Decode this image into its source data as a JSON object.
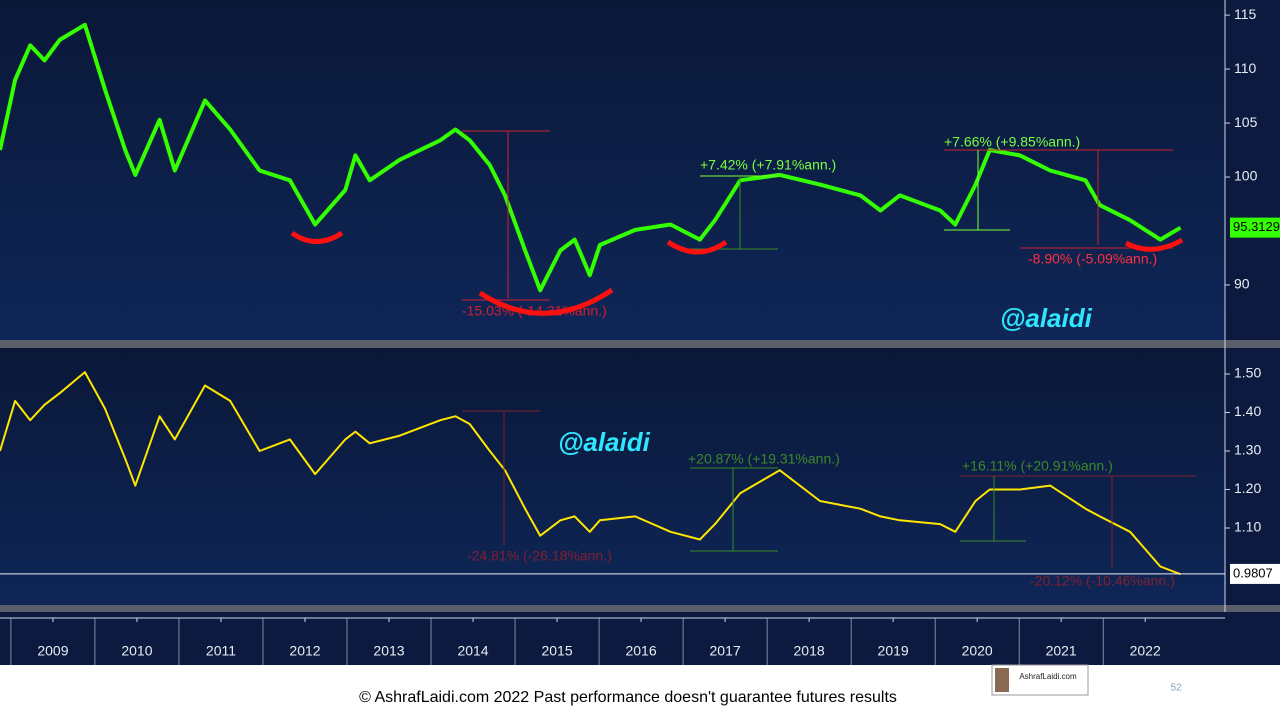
{
  "chart_data": [
    {
      "type": "line",
      "color": "#33ff00",
      "x": [
        2008.87,
        2009.05,
        2009.23,
        2009.4,
        2009.58,
        2009.88,
        2010.12,
        2010.36,
        2010.48,
        2010.77,
        2010.95,
        2011.31,
        2011.61,
        2011.96,
        2012.32,
        2012.62,
        2012.98,
        2013.1,
        2013.27,
        2013.63,
        2014.11,
        2014.29,
        2014.46,
        2014.7,
        2014.88,
        2015.12,
        2015.3,
        2015.54,
        2015.71,
        2015.89,
        2016.01,
        2016.43,
        2016.85,
        2017.2,
        2017.38,
        2017.68,
        2018.15,
        2018.63,
        2019.11,
        2019.35,
        2019.58,
        2020.06,
        2020.24,
        2020.48,
        2020.65,
        2021.01,
        2021.37,
        2021.79,
        2021.96,
        2022.32,
        2022.68,
        2022.92
      ],
      "values": [
        102.5,
        109.0,
        112.2,
        110.8,
        112.7,
        114.1,
        108.1,
        102.5,
        100.2,
        105.3,
        100.6,
        107.1,
        104.4,
        100.6,
        99.7,
        95.6,
        98.8,
        102.0,
        99.7,
        101.6,
        103.4,
        104.4,
        103.4,
        101.1,
        98.3,
        93.2,
        89.5,
        93.2,
        94.2,
        90.9,
        93.7,
        95.1,
        95.6,
        94.2,
        96.0,
        99.7,
        100.2,
        99.3,
        98.3,
        96.9,
        98.3,
        96.9,
        95.6,
        99.3,
        102.5,
        102.0,
        100.6,
        99.7,
        97.4,
        96.0,
        94.2,
        95.3
      ],
      "last_value": 95.3129,
      "xlim": [
        2008.87,
        2023.45
      ],
      "ylim": [
        84.9,
        116.4
      ],
      "yticks": [
        90,
        100,
        105,
        110,
        115
      ],
      "annotations": [
        "-15.03% (-14.31%ann.)",
        "+7.42% (+7.91%ann.)",
        "+7.66% (+9.85%ann.)",
        "-8.90% (-5.09%ann.)",
        "@alaidi"
      ]
    },
    {
      "type": "line",
      "color": "#ffe600",
      "x": [
        2008.87,
        2009.05,
        2009.23,
        2009.4,
        2009.58,
        2009.88,
        2010.12,
        2010.36,
        2010.48,
        2010.77,
        2010.95,
        2011.31,
        2011.61,
        2011.96,
        2012.32,
        2012.62,
        2012.98,
        2013.1,
        2013.27,
        2013.63,
        2014.11,
        2014.29,
        2014.46,
        2014.7,
        2014.88,
        2015.12,
        2015.3,
        2015.54,
        2015.71,
        2015.89,
        2016.01,
        2016.43,
        2016.85,
        2017.2,
        2017.38,
        2017.68,
        2018.15,
        2018.63,
        2019.11,
        2019.35,
        2019.58,
        2020.06,
        2020.24,
        2020.48,
        2020.65,
        2021.01,
        2021.37,
        2021.79,
        2021.96,
        2022.32,
        2022.68,
        2022.92
      ],
      "values": [
        1.3,
        1.43,
        1.38,
        1.42,
        1.45,
        1.505,
        1.41,
        1.28,
        1.21,
        1.39,
        1.33,
        1.47,
        1.43,
        1.3,
        1.33,
        1.24,
        1.33,
        1.35,
        1.32,
        1.34,
        1.38,
        1.39,
        1.37,
        1.3,
        1.25,
        1.15,
        1.08,
        1.12,
        1.13,
        1.09,
        1.12,
        1.13,
        1.09,
        1.07,
        1.11,
        1.19,
        1.25,
        1.17,
        1.15,
        1.13,
        1.12,
        1.11,
        1.09,
        1.17,
        1.2,
        1.2,
        1.21,
        1.15,
        1.13,
        1.09,
        1.0,
        0.98
      ],
      "last_value": 0.9807,
      "xlim": [
        2008.87,
        2023.45
      ],
      "ylim": [
        0.9,
        1.5675
      ],
      "yticks": [
        {
          "value": 1.5,
          "label": "1.50"
        },
        {
          "value": 1.4,
          "label": "1.40"
        },
        {
          "value": 1.3,
          "label": "1.30"
        },
        {
          "value": 1.2,
          "label": "1.20"
        },
        {
          "value": 1.1,
          "label": "1.10"
        }
      ],
      "xticks": [
        {
          "value": 2009.5,
          "label": "2009"
        },
        {
          "value": 2010.5,
          "label": "2010"
        },
        {
          "value": 2011.5,
          "label": "2011"
        },
        {
          "value": 2012.5,
          "label": "2012"
        },
        {
          "value": 2013.5,
          "label": "2013"
        },
        {
          "value": 2014.5,
          "label": "2014"
        },
        {
          "value": 2015.5,
          "label": "2015"
        },
        {
          "value": 2016.5,
          "label": "2016"
        },
        {
          "value": 2017.5,
          "label": "2017"
        },
        {
          "value": 2018.5,
          "label": "2018"
        },
        {
          "value": 2019.5,
          "label": "2019"
        },
        {
          "value": 2020.5,
          "label": "2020"
        },
        {
          "value": 2021.5,
          "label": "2021"
        },
        {
          "value": 2022.5,
          "label": "2022"
        }
      ],
      "annotations": [
        "-24.81% (-26.18%ann.)",
        "+20.87% (+19.31%ann.)",
        "+16.11% (+20.91%ann.)",
        "-20.12% (-10.46%ann.)",
        "@alaidi"
      ]
    }
  ],
  "footer": {
    "copyright": "© AshrafLaidi.com 2022 Past performance doesn't guarantee futures results",
    "page": "52",
    "logo": "AshrafLaidi.com"
  }
}
